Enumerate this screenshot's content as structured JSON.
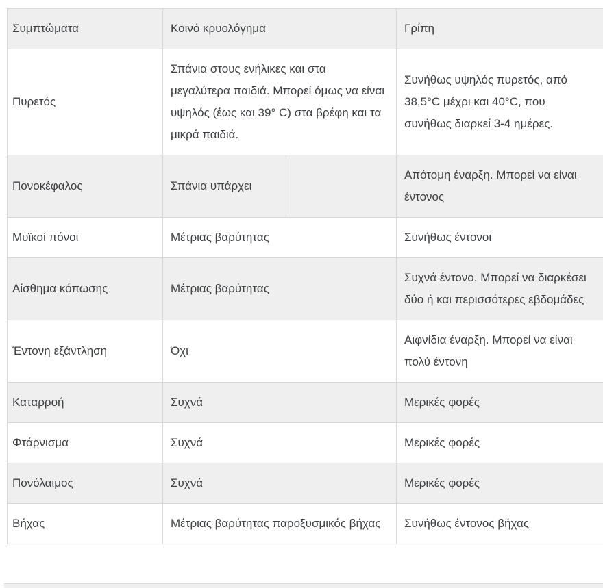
{
  "table": {
    "columns": [
      {
        "label": "Συμπτώματα"
      },
      {
        "label": "Κοινό κρυολόγημα"
      },
      {
        "label": "Γρίπη"
      }
    ],
    "rows": [
      {
        "symptom": "Πυρετός",
        "cold": "Σπάνια στους ενήλικες και στα μεγαλύτερα παιδιά. Μπορεί όμως να είναι υψηλός (έως και 39° C) στα βρέφη και τα μικρά παιδιά.",
        "flu": "Συνήθως υψηλός πυρετός, από 38,5°C μέχρι και 40°C, που συνήθως διαρκεί 3-4 ημέρες."
      },
      {
        "symptom": "Πονοκέφαλος",
        "cold": "Σπάνια υπάρχει",
        "cold_extra": "",
        "split": true,
        "flu": "Απότομη έναρξη. Μπορεί να είναι έντονος"
      },
      {
        "symptom": "Μυϊκοί πόνοι",
        "cold": "Μέτριας βαρύτητας",
        "flu": "Συνήθως έντονοι"
      },
      {
        "symptom": "Αίσθημα κόπωσης",
        "cold": "Μέτριας βαρύτητας",
        "flu": "Συχνά έντονο. Μπορεί να διαρκέσει δύο ή και περισσότερες εβδομάδες"
      },
      {
        "symptom": "Έντονη εξάντληση",
        "cold": "Όχι",
        "flu": "Αιφνίδια έναρξη. Μπορεί να είναι πολύ έντονη"
      },
      {
        "symptom": "Καταρροή",
        "cold": "Συχνά",
        "flu": "Μερικές φορές"
      },
      {
        "symptom": "Φτάρνισμα",
        "cold": "Συχνά",
        "flu": "Μερικές φορές"
      },
      {
        "symptom": "Πονόλαιμος",
        "cold": "Συχνά",
        "flu": "Μερικές φορές"
      },
      {
        "symptom": "Βήχας",
        "cold": "Μέτριας βαρύτητας παροξυσμικός βήχας",
        "flu": "Συνήθως έντονος βήχας"
      }
    ],
    "colors": {
      "row_stripe": "#efefef",
      "border": "#d8d8d8",
      "text": "#3f4245",
      "background": "#ffffff"
    }
  }
}
